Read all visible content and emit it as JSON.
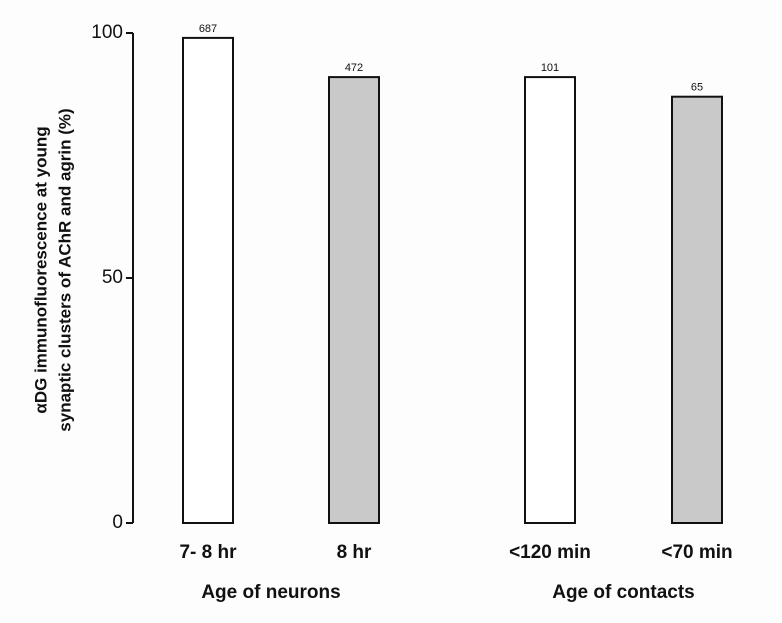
{
  "chart_data": {
    "type": "bar",
    "y_label": [
      "αDG immunofluorescence at young",
      "synaptic clusters of AChR and agrin (%)"
    ],
    "categories": [
      "7- 8 hr",
      "8 hr",
      "<120 min",
      "<70 min"
    ],
    "values": [
      99,
      91,
      91,
      87
    ],
    "n": [
      687,
      472,
      101,
      65
    ],
    "colors": [
      "#ffffff",
      "#c9c9c9",
      "#ffffff",
      "#c9c9c9"
    ],
    "group_labels": [
      "Age of neurons",
      "Age of contacts"
    ],
    "ylim": [
      0,
      100
    ],
    "yticks": [
      0,
      50,
      100
    ]
  }
}
